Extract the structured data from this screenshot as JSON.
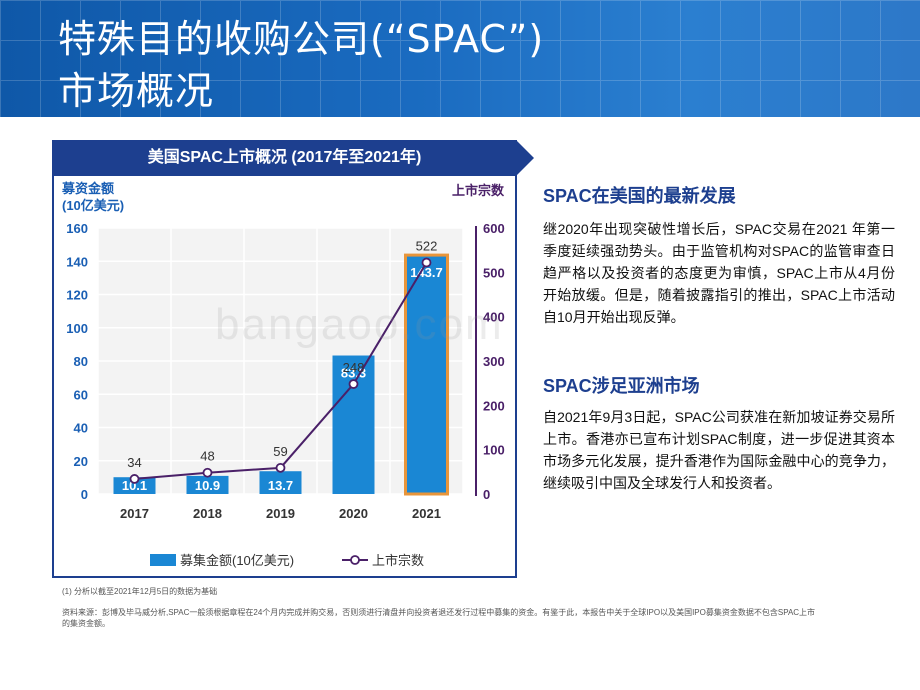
{
  "header": {
    "title_line1": "特殊目的收购公司(“SPAC”)",
    "title_line2": "市场概况"
  },
  "chart_panel": {
    "banner": "美国SPAC上市概况 (2017年至2021年)",
    "left_axis_label_line1": "募资金额",
    "left_axis_label_line2": "(10亿美元)",
    "right_axis_label": "上市宗数"
  },
  "chart_data": {
    "type": "bar",
    "title": "美国SPAC上市概况 (2017年至2021年)",
    "categories": [
      "2017",
      "2018",
      "2019",
      "2020",
      "2021"
    ],
    "series": [
      {
        "name": "募集金额(10亿美元)",
        "type": "bar",
        "axis": "left",
        "values": [
          10.1,
          10.9,
          13.7,
          83.3,
          143.7
        ],
        "color": "#1a87d4"
      },
      {
        "name": "上市宗数",
        "type": "line",
        "axis": "right",
        "values": [
          34,
          48,
          59,
          248,
          522
        ],
        "color": "#4a2068"
      }
    ],
    "ylabel": "募资金额 (10亿美元)",
    "y2label": "上市宗数",
    "ylim": [
      0,
      160
    ],
    "y2lim": [
      0,
      600
    ],
    "yticks": [
      0,
      20,
      40,
      60,
      80,
      100,
      120,
      140,
      160
    ],
    "y2ticks": [
      0,
      100,
      200,
      300,
      400,
      500,
      600
    ],
    "highlight_category": "2021",
    "highlight_color": "#e8953a",
    "grid": true,
    "legend_position": "bottom"
  },
  "footnotes": {
    "note1": "(1) 分析以截至2021年12月5日的数据为基础",
    "note2": "资料来源：彭博及毕马威分析,SPAC一般须根据章程在24个月内完成并购交易，否则须进行清盘并向投资者退还发行过程中募集的资金。有鉴于此，本报告中关于全球IPO以及美国IPO募集资金数据不包含SPAC上市的集资金额。"
  },
  "sections": [
    {
      "heading": "SPAC在美国的最新发展",
      "body": "继2020年出现突破性增长后，SPAC交易在2021 年第一季度延续强劲势头。由于监管机构对SPAC的监管审查日趋严格以及投资者的态度更为审慎，SPAC上市从4月份开始放缓。但是，随着披露指引的推出，SPAC上市活动自10月开始出现反弹。"
    },
    {
      "heading": "SPAC涉足亚洲市场",
      "body": "自2021年9月3日起，SPAC公司获准在新加坡证券交易所上市。香港亦已宣布计划SPAC制度，进一步促进其资本市场多元化发展，提升香港作为国际金融中心的竞争力，继续吸引中国及全球发行人和投资者。"
    }
  ],
  "watermark": "bangaoo.com"
}
